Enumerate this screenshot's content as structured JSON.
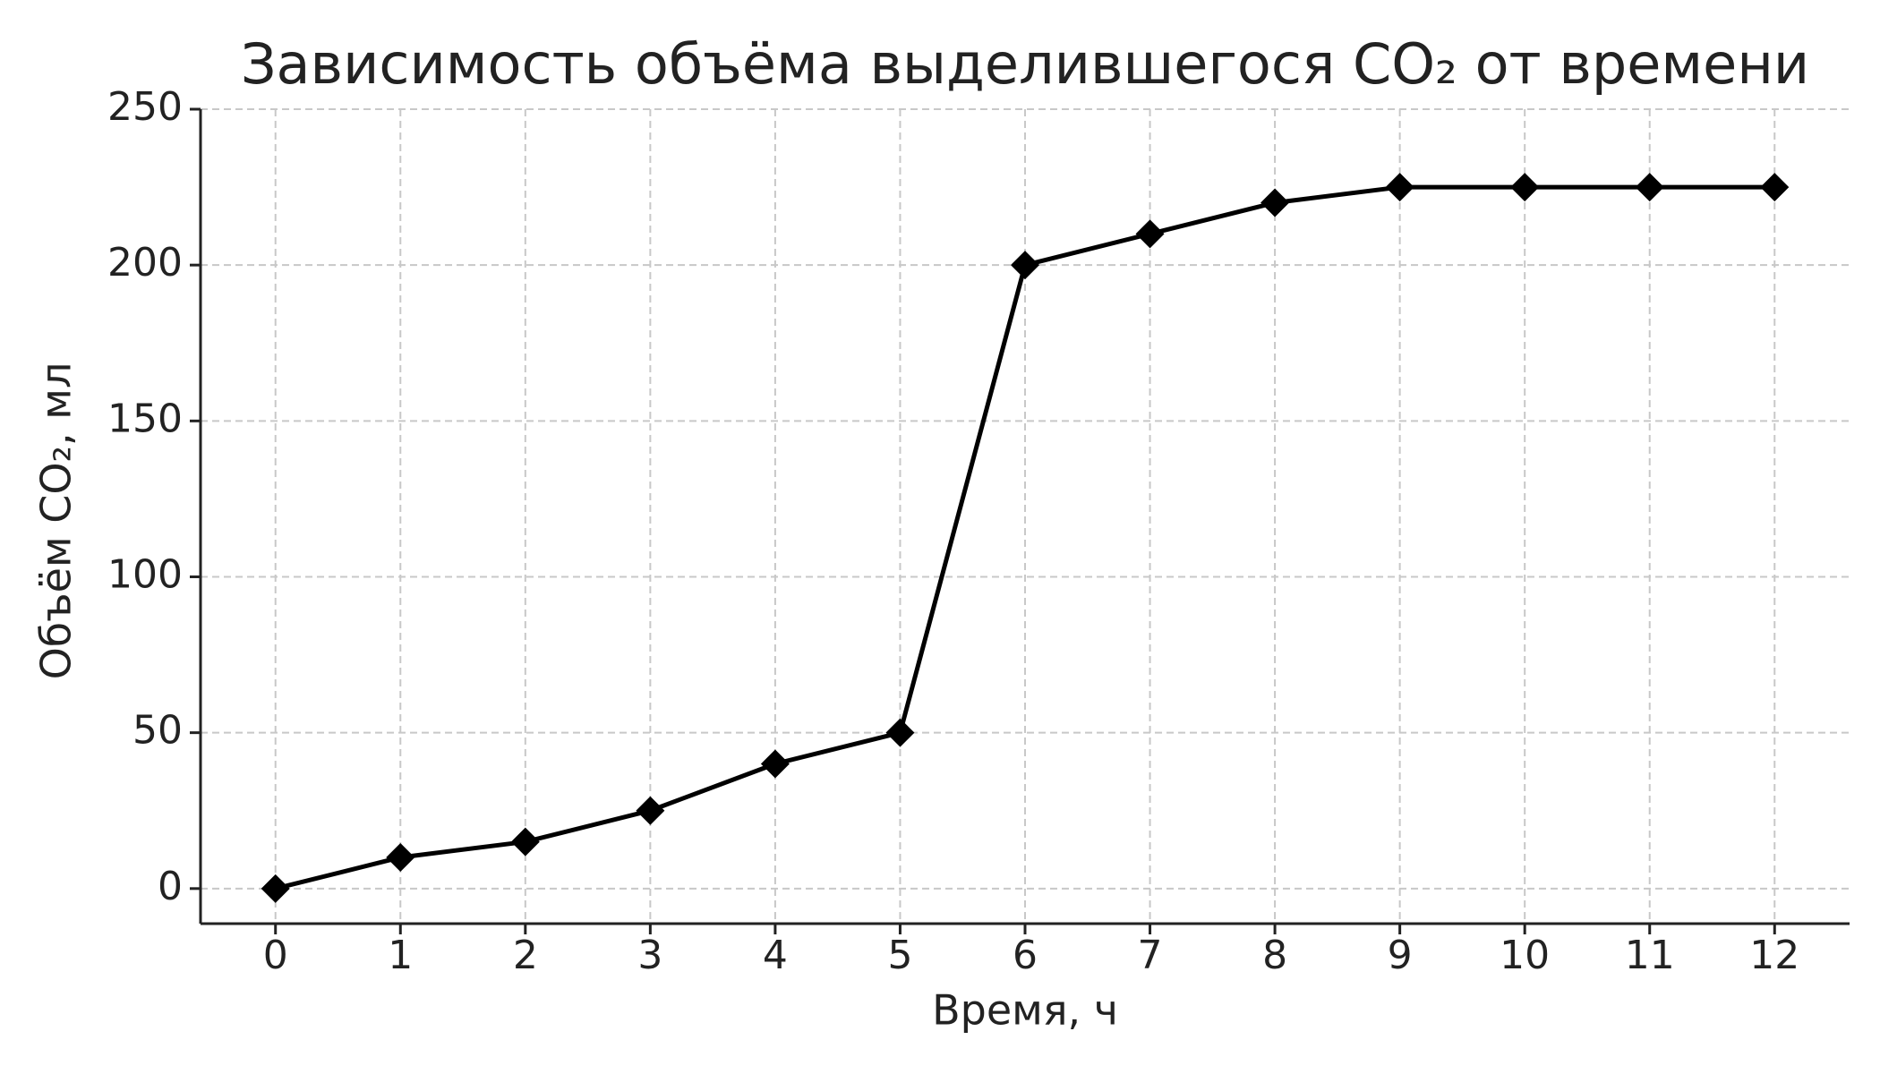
{
  "chart_data": {
    "type": "line",
    "title": "Зависимость объёма выделившегося CO₂ от времени",
    "x_label": "Время, ч",
    "y_label": "Объём CO₂, мл",
    "x": [
      0,
      1,
      2,
      3,
      4,
      5,
      6,
      7,
      8,
      9,
      10,
      11,
      12
    ],
    "values": [
      0,
      10,
      15,
      25,
      40,
      50,
      200,
      210,
      220,
      225,
      225,
      225,
      225
    ],
    "color": "#000000",
    "marker": "diamond",
    "xlim": [
      -0.6,
      12.6
    ],
    "ylim": [
      -11.25,
      250
    ],
    "xticks": [
      0,
      1,
      2,
      3,
      4,
      5,
      6,
      7,
      8,
      9,
      10,
      11,
      12
    ],
    "yticks": [
      0,
      50,
      100,
      150,
      200,
      250
    ],
    "grid": true
  }
}
